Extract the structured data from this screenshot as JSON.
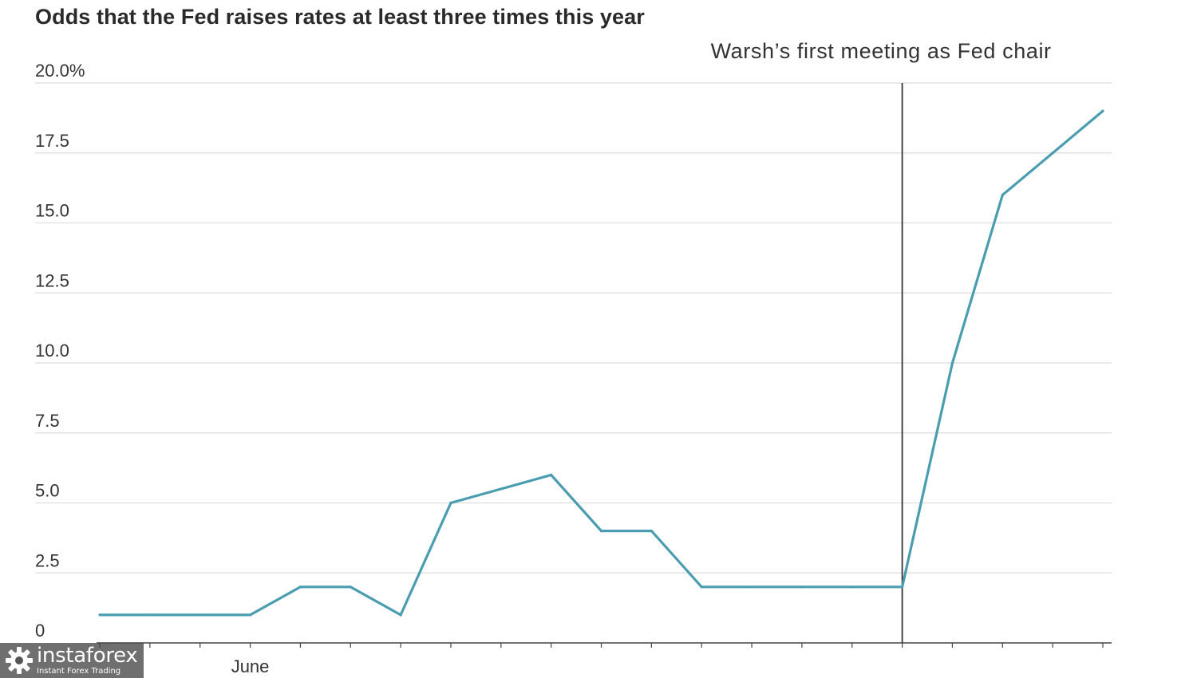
{
  "chart_data": {
    "type": "line",
    "title": "Odds that the Fed raises rates at least three times this year",
    "xlabel": "",
    "ylabel": "",
    "ylim": [
      0,
      20
    ],
    "yticks": [
      {
        "value": 0,
        "label": "0"
      },
      {
        "value": 2.5,
        "label": "2.5"
      },
      {
        "value": 5,
        "label": "5.0"
      },
      {
        "value": 7.5,
        "label": "7.5"
      },
      {
        "value": 10,
        "label": "10.0"
      },
      {
        "value": 12.5,
        "label": "12.5"
      },
      {
        "value": 15,
        "label": "15.0"
      },
      {
        "value": 17.5,
        "label": "17.5"
      },
      {
        "value": 20,
        "label": "20.0%"
      }
    ],
    "xtick_labels": [
      {
        "index": 3,
        "label": "June"
      }
    ],
    "grid": true,
    "series": [
      {
        "values": [
          1,
          1,
          1,
          1,
          2,
          2,
          1,
          5,
          5.5,
          6,
          4,
          4,
          2,
          2,
          2,
          2,
          2,
          10,
          16,
          17.5,
          19
        ]
      }
    ],
    "annotations": [
      {
        "type": "vertical-line",
        "index": 16,
        "label": "Warsh’s first meeting as Fed chair"
      }
    ],
    "colors": {
      "series": "#4a9db1",
      "grid": "#e2e2e2",
      "axis": "#444444"
    }
  },
  "watermark": {
    "brand": "instaforex",
    "tagline": "Instant Forex Trading",
    "icon": "gear-icon"
  }
}
